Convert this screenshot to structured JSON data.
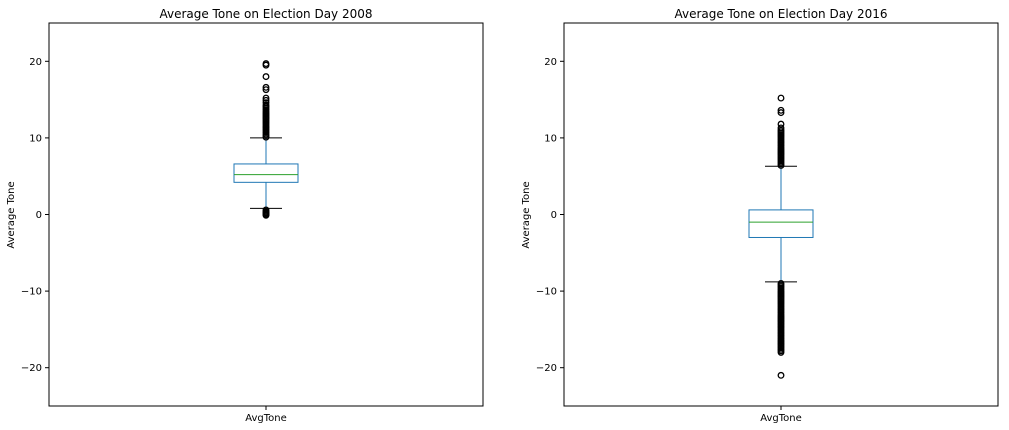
{
  "colors": {
    "box": "#1f77b4",
    "median": "#2ca02c",
    "whisker": "#1f77b4",
    "cap": "#000000",
    "flier": "#000000",
    "background": "#ffffff"
  },
  "chart_data": [
    {
      "type": "box",
      "title": "Average Tone on Election Day 2008",
      "ylabel": "Average Tone",
      "categories": [
        "AvgTone"
      ],
      "ylim": [
        -25,
        25
      ],
      "yticks": [
        -20,
        -10,
        0,
        10,
        20
      ],
      "ytick_labels": [
        "−20",
        "−10",
        "0",
        "10",
        "20"
      ],
      "grid": false,
      "box": {
        "whisker_low": 0.8,
        "q1": 4.2,
        "median": 5.2,
        "q3": 6.6,
        "whisker_high": 10.0
      },
      "outliers": [
        -0.1,
        0.0,
        0.1,
        0.2,
        0.3,
        0.45,
        0.6,
        10.1,
        10.3,
        10.5,
        10.7,
        10.9,
        11.1,
        11.3,
        11.5,
        11.7,
        11.9,
        12.1,
        12.3,
        12.5,
        12.7,
        12.9,
        13.1,
        13.3,
        13.5,
        13.7,
        13.9,
        14.1,
        14.3,
        14.6,
        14.9,
        15.2,
        16.3,
        16.6,
        18.0,
        19.5,
        19.7
      ]
    },
    {
      "type": "box",
      "title": "Average Tone on Election Day 2016",
      "ylabel": "Average Tone",
      "categories": [
        "AvgTone"
      ],
      "ylim": [
        -25,
        25
      ],
      "yticks": [
        -20,
        -10,
        0,
        10,
        20
      ],
      "ytick_labels": [
        "−20",
        "−10",
        "0",
        "10",
        "20"
      ],
      "grid": false,
      "box": {
        "whisker_low": -8.8,
        "q1": -3.0,
        "median": -1.0,
        "q3": 0.6,
        "whisker_high": 6.3
      },
      "outliers": [
        6.4,
        6.6,
        6.8,
        7.0,
        7.2,
        7.4,
        7.6,
        7.8,
        8.0,
        8.2,
        8.4,
        8.6,
        8.8,
        9.0,
        9.2,
        9.4,
        9.6,
        9.8,
        10.0,
        10.2,
        10.4,
        10.6,
        10.8,
        11.0,
        11.3,
        11.8,
        13.3,
        13.6,
        15.2,
        -9.0,
        -9.2,
        -9.4,
        -9.6,
        -9.8,
        -10.0,
        -10.2,
        -10.4,
        -10.6,
        -10.8,
        -11.0,
        -11.2,
        -11.4,
        -11.6,
        -11.8,
        -12.0,
        -12.2,
        -12.4,
        -12.6,
        -12.8,
        -13.0,
        -13.2,
        -13.4,
        -13.6,
        -13.8,
        -14.0,
        -14.2,
        -14.4,
        -14.6,
        -14.8,
        -15.0,
        -15.2,
        -15.4,
        -15.6,
        -15.8,
        -16.0,
        -16.2,
        -16.4,
        -16.6,
        -16.8,
        -17.0,
        -17.2,
        -17.4,
        -17.6,
        -17.8,
        -18.0,
        -21.0
      ]
    }
  ]
}
